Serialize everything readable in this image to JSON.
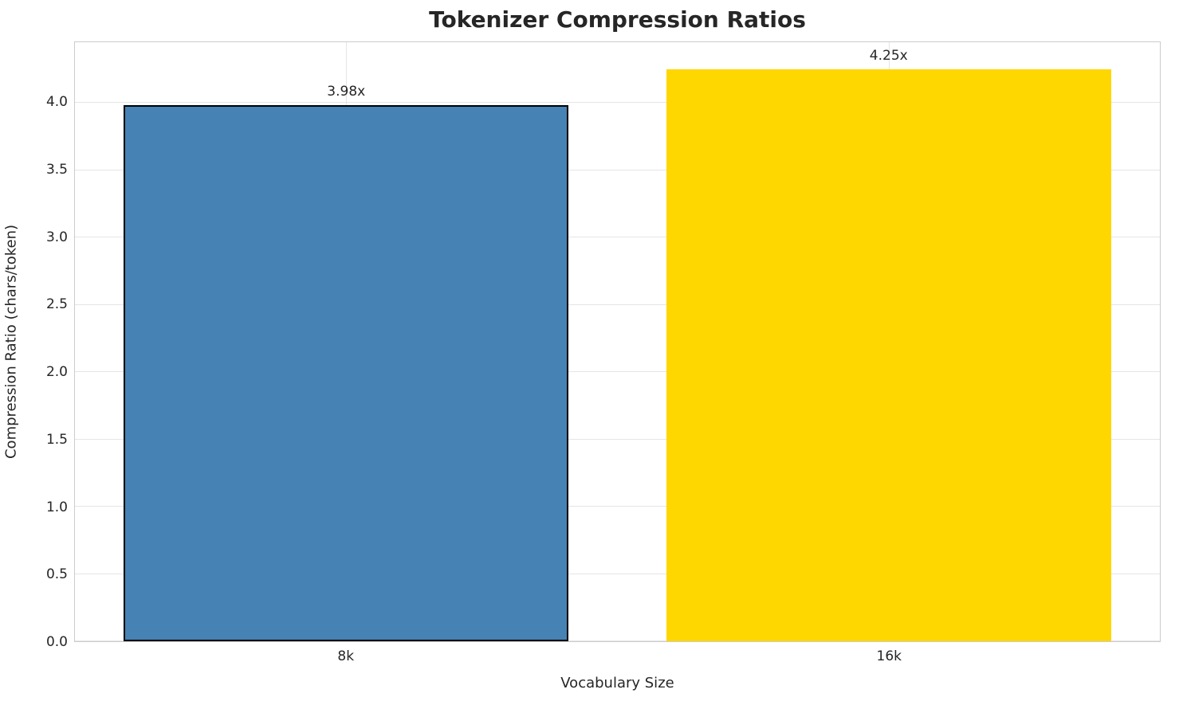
{
  "chart_data": {
    "type": "bar",
    "title": "Tokenizer Compression Ratios",
    "xlabel": "Vocabulary Size",
    "ylabel": "Compression Ratio (chars/token)",
    "categories": [
      "8k",
      "16k"
    ],
    "values": [
      3.98,
      4.25
    ],
    "bar_labels": [
      "3.98x",
      "4.25x"
    ],
    "bar_colors": [
      "#4682b4",
      "#ffd700"
    ],
    "bar_edge_colors": [
      "#000000",
      "none"
    ],
    "bar_edge_width": 2,
    "bar_width_fraction": 0.82,
    "yticks": [
      "0.0",
      "0.5",
      "1.0",
      "1.5",
      "2.0",
      "2.5",
      "3.0",
      "3.5",
      "4.0"
    ],
    "ylim": [
      0,
      4.45
    ],
    "grid": true,
    "grid_color": "#e5e5e5",
    "background": "#ffffff",
    "legend": "none"
  }
}
